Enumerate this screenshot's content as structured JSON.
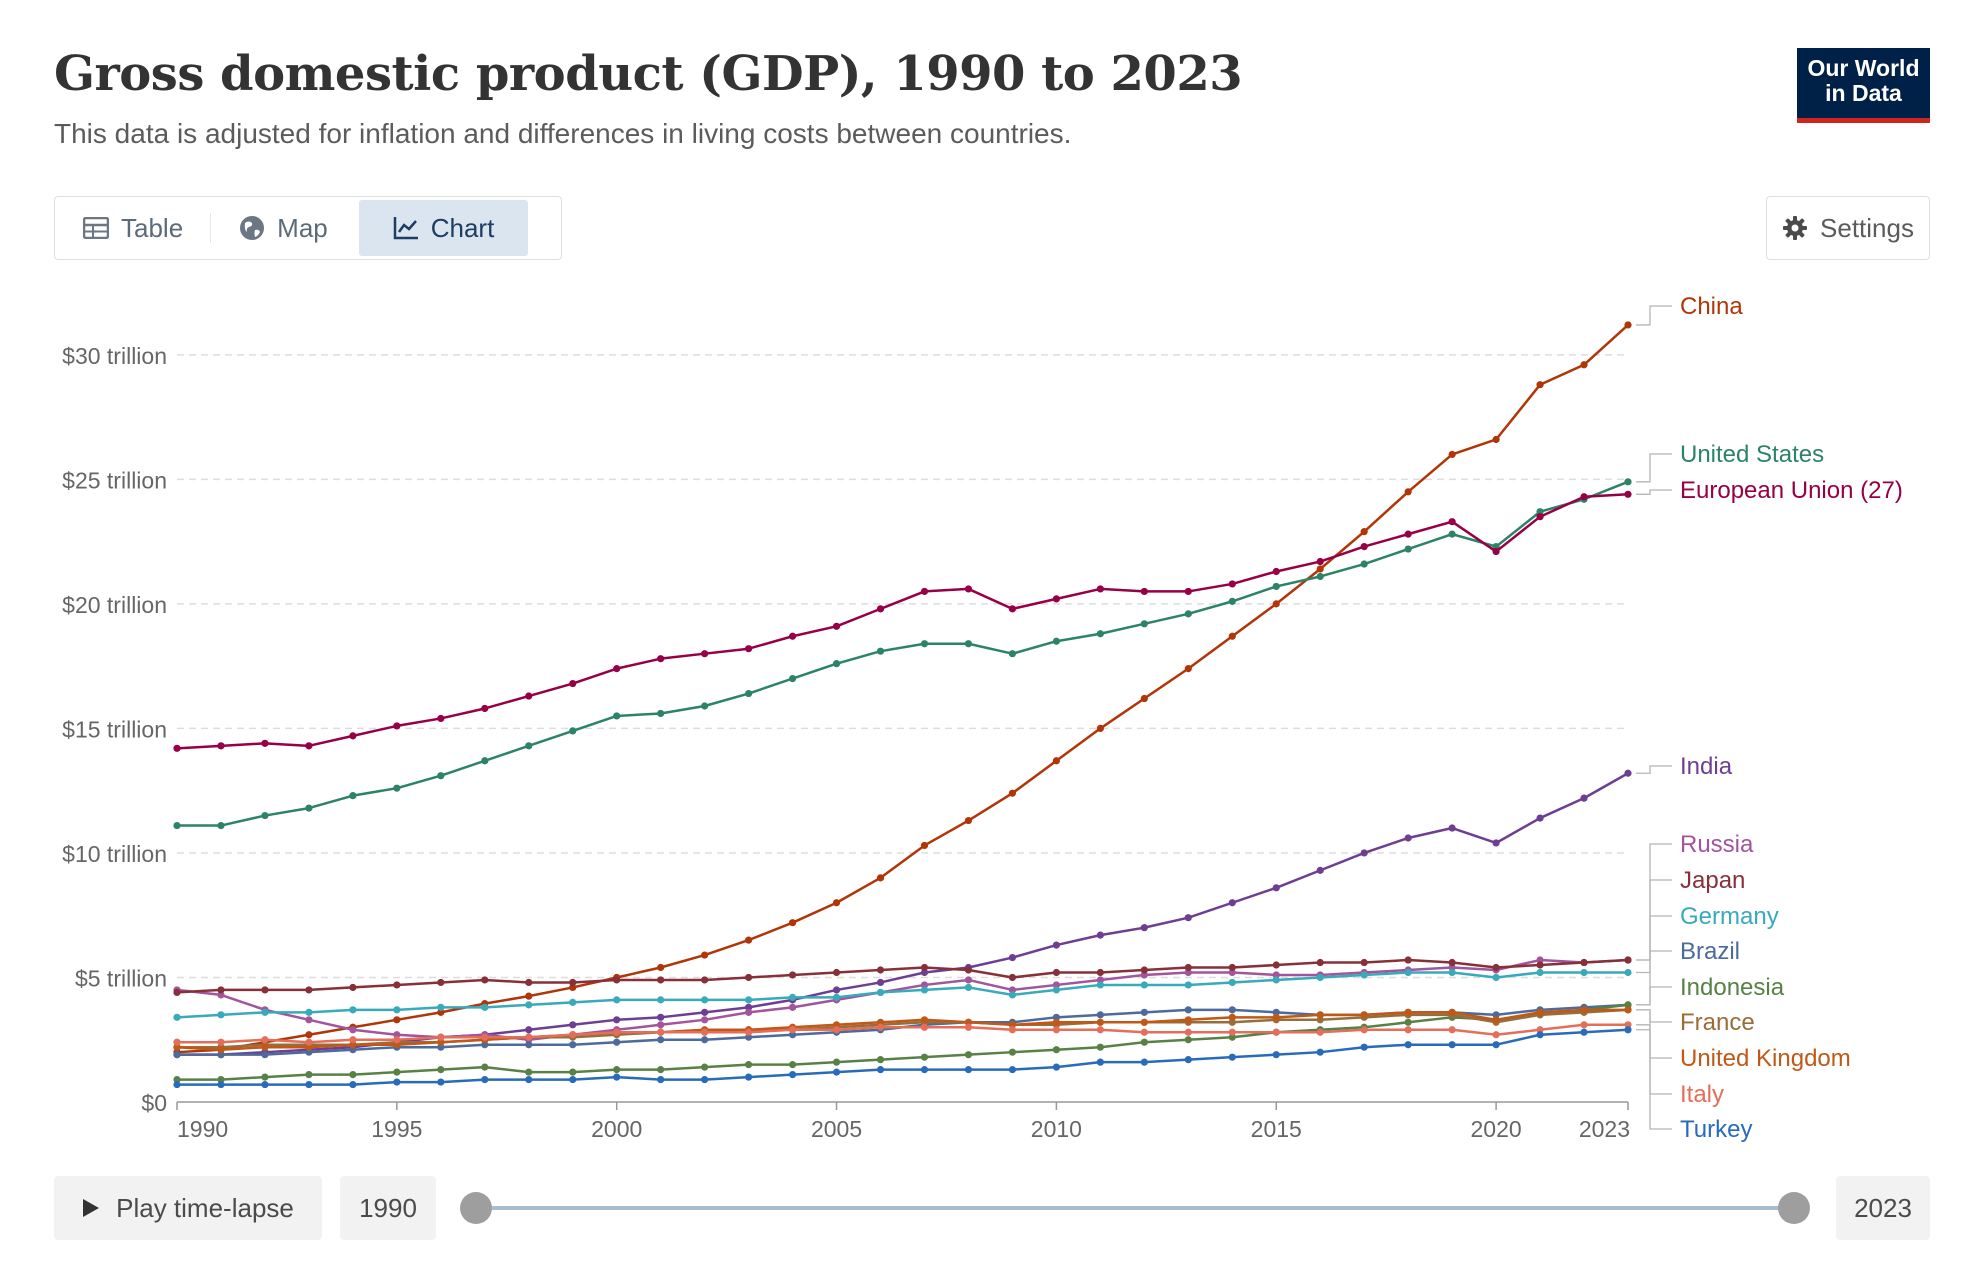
{
  "header": {
    "title": "Gross domestic product (GDP), 1990 to 2023",
    "subtitle": "This data is adjusted for inflation and differences in living costs between countries.",
    "logo_line1": "Our World",
    "logo_line2": "in Data"
  },
  "tabs": [
    {
      "label": "Table",
      "icon": "table-icon"
    },
    {
      "label": "Map",
      "icon": "globe-icon"
    },
    {
      "label": "Chart",
      "icon": "line-chart-icon",
      "active": true
    }
  ],
  "settings_label": "Settings",
  "controls": {
    "play_label": "Play time-lapse",
    "start_year": "1990",
    "end_year": "2023",
    "range_start": 1990,
    "range_end": 2023
  },
  "chart_data": {
    "type": "line",
    "title": "Gross domestic product (GDP), 1990 to 2023",
    "ylim": [
      0,
      32
    ],
    "xlim": [
      1990,
      2023
    ],
    "y_ticks": [
      {
        "value": 0,
        "label": "$0"
      },
      {
        "value": 5,
        "label": "$5 trillion"
      },
      {
        "value": 10,
        "label": "$10 trillion"
      },
      {
        "value": 15,
        "label": "$15 trillion"
      },
      {
        "value": 20,
        "label": "$20 trillion"
      },
      {
        "value": 25,
        "label": "$25 trillion"
      },
      {
        "value": 30,
        "label": "$30 trillion"
      }
    ],
    "x_ticks": [
      {
        "value": 1990,
        "label": "1990"
      },
      {
        "value": 1995,
        "label": "1995"
      },
      {
        "value": 2000,
        "label": "2000"
      },
      {
        "value": 2005,
        "label": "2005"
      },
      {
        "value": 2010,
        "label": "2010"
      },
      {
        "value": 2015,
        "label": "2015"
      },
      {
        "value": 2020,
        "label": "2020"
      },
      {
        "value": 2023,
        "label": "2023"
      }
    ],
    "grid": true,
    "legend": "right, line-end labels",
    "x": [
      1990,
      1991,
      1992,
      1993,
      1994,
      1995,
      1996,
      1997,
      1998,
      1999,
      2000,
      2001,
      2002,
      2003,
      2004,
      2005,
      2006,
      2007,
      2008,
      2009,
      2010,
      2011,
      2012,
      2013,
      2014,
      2015,
      2016,
      2017,
      2018,
      2019,
      2020,
      2021,
      2022,
      2023
    ],
    "series": [
      {
        "name": "China",
        "color": "#b13507",
        "values": [
          2.0,
          2.1,
          2.4,
          2.7,
          3.0,
          3.3,
          3.6,
          3.95,
          4.25,
          4.6,
          5.0,
          5.4,
          5.9,
          6.5,
          7.2,
          8.0,
          9.0,
          10.3,
          11.3,
          12.4,
          13.7,
          15.0,
          16.2,
          17.4,
          18.7,
          20.0,
          21.4,
          22.9,
          24.5,
          26.0,
          26.6,
          28.8,
          29.6,
          31.2
        ]
      },
      {
        "name": "United States",
        "color": "#2c8465",
        "values": [
          11.1,
          11.1,
          11.5,
          11.8,
          12.3,
          12.6,
          13.1,
          13.7,
          14.3,
          14.9,
          15.5,
          15.6,
          15.9,
          16.4,
          17.0,
          17.6,
          18.1,
          18.4,
          18.4,
          18.0,
          18.5,
          18.8,
          19.2,
          19.6,
          20.1,
          20.7,
          21.1,
          21.6,
          22.2,
          22.8,
          22.3,
          23.7,
          24.2,
          24.9
        ]
      },
      {
        "name": "European Union (27)",
        "color": "#970046",
        "values": [
          14.2,
          14.3,
          14.4,
          14.3,
          14.7,
          15.1,
          15.4,
          15.8,
          16.3,
          16.8,
          17.4,
          17.8,
          18.0,
          18.2,
          18.7,
          19.1,
          19.8,
          20.5,
          20.6,
          19.8,
          20.2,
          20.6,
          20.5,
          20.5,
          20.8,
          21.3,
          21.7,
          22.3,
          22.8,
          23.3,
          22.1,
          23.5,
          24.3,
          24.4
        ]
      },
      {
        "name": "India",
        "color": "#6d3e91",
        "values": [
          1.9,
          1.9,
          2.0,
          2.1,
          2.2,
          2.4,
          2.6,
          2.7,
          2.9,
          3.1,
          3.3,
          3.4,
          3.6,
          3.8,
          4.1,
          4.5,
          4.8,
          5.2,
          5.4,
          5.8,
          6.3,
          6.7,
          7.0,
          7.4,
          8.0,
          8.6,
          9.3,
          10.0,
          10.6,
          11.0,
          10.4,
          11.4,
          12.2,
          13.2
        ]
      },
      {
        "name": "Russia",
        "color": "#a2559c",
        "values": [
          4.5,
          4.3,
          3.7,
          3.3,
          2.9,
          2.7,
          2.6,
          2.7,
          2.5,
          2.7,
          2.9,
          3.1,
          3.3,
          3.6,
          3.8,
          4.1,
          4.4,
          4.7,
          4.9,
          4.5,
          4.7,
          4.9,
          5.1,
          5.2,
          5.2,
          5.1,
          5.1,
          5.2,
          5.3,
          5.4,
          5.3,
          5.7,
          5.6,
          5.7
        ]
      },
      {
        "name": "Japan",
        "color": "#883039",
        "values": [
          4.4,
          4.5,
          4.5,
          4.5,
          4.6,
          4.7,
          4.8,
          4.9,
          4.8,
          4.8,
          4.9,
          4.9,
          4.9,
          5.0,
          5.1,
          5.2,
          5.3,
          5.4,
          5.3,
          5.0,
          5.2,
          5.2,
          5.3,
          5.4,
          5.4,
          5.5,
          5.6,
          5.6,
          5.7,
          5.6,
          5.4,
          5.5,
          5.6,
          5.7
        ]
      },
      {
        "name": "Germany",
        "color": "#38aaba",
        "values": [
          3.4,
          3.5,
          3.6,
          3.6,
          3.7,
          3.7,
          3.8,
          3.8,
          3.9,
          4.0,
          4.1,
          4.1,
          4.1,
          4.1,
          4.2,
          4.2,
          4.4,
          4.5,
          4.6,
          4.3,
          4.5,
          4.7,
          4.7,
          4.7,
          4.8,
          4.9,
          5.0,
          5.1,
          5.2,
          5.2,
          5.0,
          5.2,
          5.2,
          5.2
        ]
      },
      {
        "name": "Brazil",
        "color": "#4c6a9c",
        "values": [
          1.9,
          1.9,
          1.9,
          2.0,
          2.1,
          2.2,
          2.2,
          2.3,
          2.3,
          2.3,
          2.4,
          2.5,
          2.5,
          2.6,
          2.7,
          2.8,
          2.9,
          3.1,
          3.2,
          3.2,
          3.4,
          3.5,
          3.6,
          3.7,
          3.7,
          3.6,
          3.5,
          3.5,
          3.6,
          3.6,
          3.5,
          3.7,
          3.8,
          3.9
        ]
      },
      {
        "name": "Indonesia",
        "color": "#578145",
        "values": [
          0.9,
          0.9,
          1.0,
          1.1,
          1.1,
          1.2,
          1.3,
          1.4,
          1.2,
          1.2,
          1.3,
          1.3,
          1.4,
          1.5,
          1.5,
          1.6,
          1.7,
          1.8,
          1.9,
          2.0,
          2.1,
          2.2,
          2.4,
          2.5,
          2.6,
          2.8,
          2.9,
          3.0,
          3.2,
          3.4,
          3.3,
          3.5,
          3.7,
          3.9
        ]
      },
      {
        "name": "France",
        "color": "#996d39",
        "values": [
          2.2,
          2.2,
          2.3,
          2.3,
          2.3,
          2.4,
          2.4,
          2.5,
          2.6,
          2.6,
          2.7,
          2.8,
          2.8,
          2.9,
          2.9,
          3.0,
          3.1,
          3.2,
          3.2,
          3.1,
          3.1,
          3.2,
          3.2,
          3.2,
          3.2,
          3.3,
          3.3,
          3.4,
          3.5,
          3.5,
          3.2,
          3.5,
          3.6,
          3.7
        ]
      },
      {
        "name": "United Kingdom",
        "color": "#c05917",
        "values": [
          2.2,
          2.1,
          2.2,
          2.2,
          2.3,
          2.3,
          2.4,
          2.5,
          2.6,
          2.7,
          2.8,
          2.8,
          2.9,
          2.9,
          3.0,
          3.1,
          3.2,
          3.3,
          3.2,
          3.1,
          3.2,
          3.2,
          3.2,
          3.3,
          3.4,
          3.4,
          3.5,
          3.5,
          3.6,
          3.6,
          3.3,
          3.6,
          3.7,
          3.7
        ]
      },
      {
        "name": "Italy",
        "color": "#e56e5a",
        "values": [
          2.4,
          2.4,
          2.5,
          2.4,
          2.5,
          2.5,
          2.6,
          2.6,
          2.6,
          2.7,
          2.8,
          2.8,
          2.8,
          2.8,
          2.9,
          2.9,
          3.0,
          3.0,
          3.0,
          2.9,
          2.9,
          2.9,
          2.8,
          2.8,
          2.8,
          2.8,
          2.8,
          2.9,
          2.9,
          2.9,
          2.7,
          2.9,
          3.1,
          3.1
        ]
      },
      {
        "name": "Turkey",
        "color": "#286bbb",
        "values": [
          0.7,
          0.7,
          0.7,
          0.7,
          0.7,
          0.8,
          0.8,
          0.9,
          0.9,
          0.9,
          1.0,
          0.9,
          0.9,
          1.0,
          1.1,
          1.2,
          1.3,
          1.3,
          1.3,
          1.3,
          1.4,
          1.6,
          1.6,
          1.7,
          1.8,
          1.9,
          2.0,
          2.2,
          2.3,
          2.3,
          2.3,
          2.7,
          2.8,
          2.9
        ]
      }
    ]
  }
}
